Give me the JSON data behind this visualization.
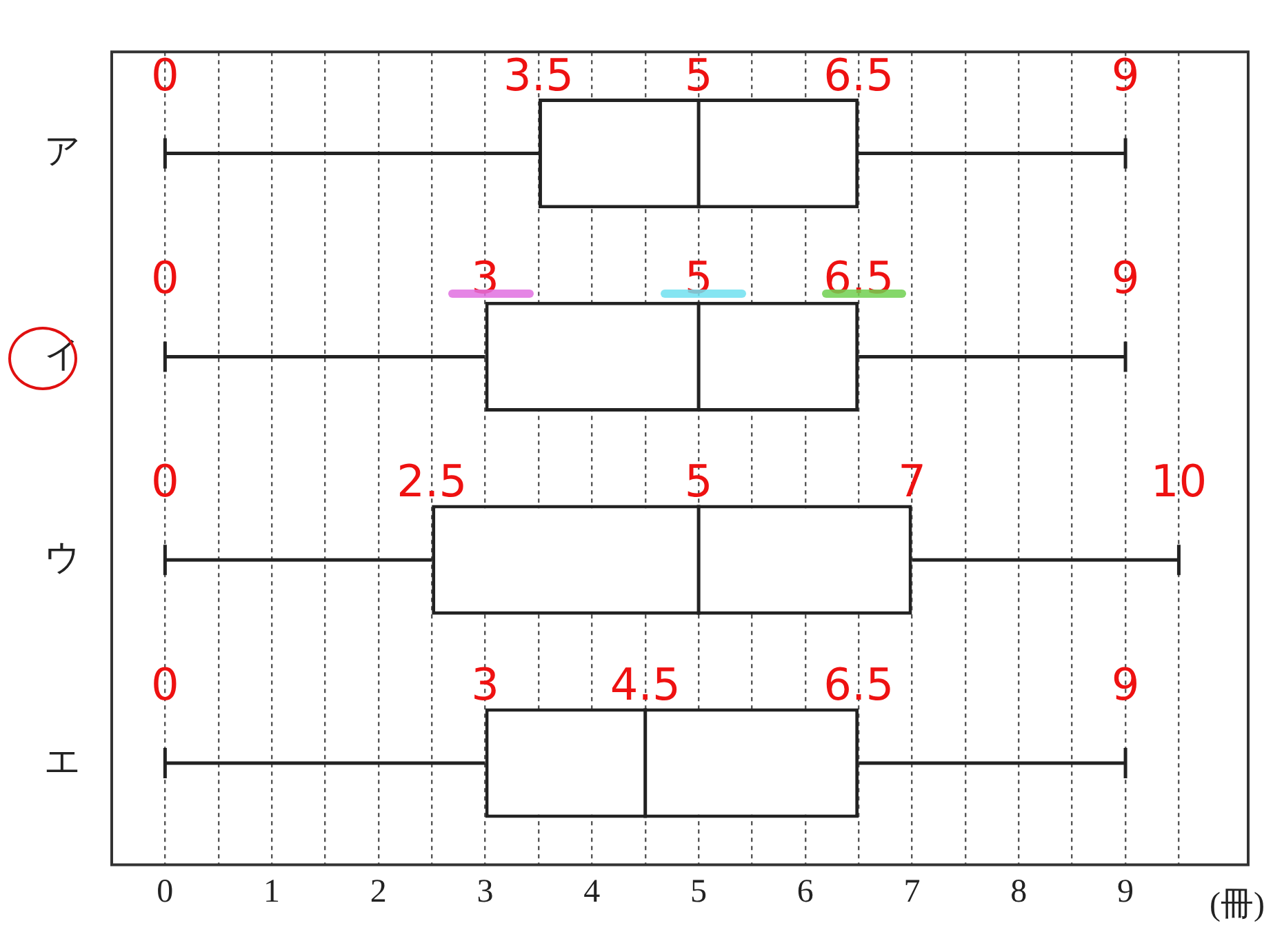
{
  "chart_data": {
    "type": "box",
    "orientation": "horizontal",
    "categories": [
      "ア",
      "イ",
      "ウ",
      "エ"
    ],
    "boxes": [
      {
        "low": 0,
        "q1": 3.5,
        "median": 5,
        "q3": 6.5,
        "high": 9
      },
      {
        "low": 0,
        "q1": 3,
        "median": 5,
        "q3": 6.5,
        "high": 9
      },
      {
        "low": 0,
        "q1": 2.5,
        "median": 5,
        "q3": 7,
        "high": 9.5
      },
      {
        "low": 0,
        "q1": 3,
        "median": 4.5,
        "q3": 6.5,
        "high": 9
      }
    ],
    "xlabel": "(冊)",
    "xlim": [
      -0.5,
      10.15
    ],
    "xticks": [
      0,
      {
        "value": 0.5,
        "label": null
      },
      1,
      {
        "value": 1.5,
        "label": null
      },
      2,
      {
        "value": 2.5,
        "label": null
      },
      3,
      {
        "value": 3.5,
        "label": null
      },
      4,
      {
        "value": 4.5,
        "label": null
      },
      5,
      {
        "value": 5.5,
        "label": null
      },
      6,
      {
        "value": 6.5,
        "label": null
      },
      7,
      {
        "value": 7.5,
        "label": null
      },
      8,
      {
        "value": 8.5,
        "label": null
      },
      9,
      {
        "value": 9.5,
        "label": null
      }
    ],
    "grid": "x",
    "legend": false,
    "annotations": [
      {
        "text": "0",
        "x": 0,
        "y": "ア"
      },
      {
        "text": "3.5",
        "x": 3.5,
        "y": "ア"
      },
      {
        "text": "5",
        "x": 5,
        "y": "ア"
      },
      {
        "text": "6.5",
        "x": 6.5,
        "y": "ア"
      },
      {
        "text": "9",
        "x": 9,
        "y": "ア"
      },
      {
        "text": "0",
        "x": 0,
        "y": "イ"
      },
      {
        "text": "3",
        "x": 3,
        "y": "イ"
      },
      {
        "text": "5",
        "x": 5,
        "y": "イ"
      },
      {
        "text": "6.5",
        "x": 6.5,
        "y": "イ"
      },
      {
        "text": "9",
        "x": 9,
        "y": "イ"
      },
      {
        "text": "0",
        "x": 0,
        "y": "ウ"
      },
      {
        "text": "2.5",
        "x": 2.5,
        "y": "ウ"
      },
      {
        "text": "5",
        "x": 5,
        "y": "ウ"
      },
      {
        "text": "7",
        "x": 7,
        "y": "ウ"
      },
      {
        "text": "10",
        "x": 9.5,
        "y": "ウ"
      },
      {
        "text": "0",
        "x": 0,
        "y": "エ"
      },
      {
        "text": "3",
        "x": 3,
        "y": "エ"
      },
      {
        "text": "4.5",
        "x": 4.5,
        "y": "エ"
      },
      {
        "text": "6.5",
        "x": 6.5,
        "y": "エ"
      },
      {
        "text": "9",
        "x": 9,
        "y": "エ"
      }
    ]
  }
}
